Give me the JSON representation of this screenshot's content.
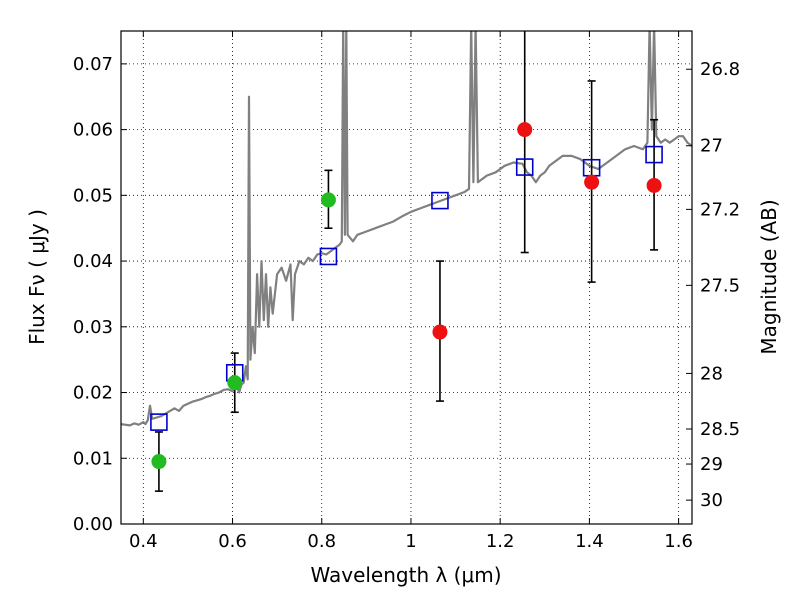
{
  "chart_data": {
    "type": "scatter",
    "xlabel": "Wavelength  λ (μm)",
    "ylabel": "Flux  Fν  ( μJy )",
    "y2label": "Magnitude (AB)",
    "xlim": [
      0.35,
      1.63
    ],
    "ylim": [
      0.0,
      0.075
    ],
    "grid": true,
    "x_ticks": [
      0.4,
      0.6,
      0.8,
      1.0,
      1.2,
      1.4,
      1.6
    ],
    "x_tick_labels": [
      "0.4",
      "0.6",
      "0.8",
      "1",
      "1.2",
      "1.4",
      "1.6"
    ],
    "y_ticks": [
      0.0,
      0.01,
      0.02,
      0.03,
      0.04,
      0.05,
      0.06,
      0.07
    ],
    "y_tick_labels": [
      "0.00",
      "0.01",
      "0.02",
      "0.03",
      "0.04",
      "0.05",
      "0.06",
      "0.07"
    ],
    "mag_ticks": [
      26.8,
      27.0,
      27.2,
      27.5,
      28.0,
      28.5,
      29.0,
      30.0
    ],
    "mag_tick_labels": [
      "26.8",
      "27",
      "27.2",
      "27.5",
      "28",
      "28.5",
      "29",
      "30"
    ],
    "colors": {
      "model": "#808080",
      "green_points": "#22bb22",
      "red_points": "#ee1111",
      "model_squares": "#0000cc",
      "errorbars": "#000000"
    },
    "model_spectrum": [
      [
        0.35,
        0.0152
      ],
      [
        0.37,
        0.015
      ],
      [
        0.38,
        0.0153
      ],
      [
        0.39,
        0.0151
      ],
      [
        0.4,
        0.0155
      ],
      [
        0.405,
        0.0152
      ],
      [
        0.41,
        0.0158
      ],
      [
        0.415,
        0.018
      ],
      [
        0.42,
        0.016
      ],
      [
        0.43,
        0.0162
      ],
      [
        0.44,
        0.0164
      ],
      [
        0.45,
        0.0168
      ],
      [
        0.46,
        0.0172
      ],
      [
        0.47,
        0.0176
      ],
      [
        0.48,
        0.0172
      ],
      [
        0.49,
        0.018
      ],
      [
        0.5,
        0.0183
      ],
      [
        0.51,
        0.0186
      ],
      [
        0.52,
        0.0188
      ],
      [
        0.53,
        0.019
      ],
      [
        0.54,
        0.0193
      ],
      [
        0.55,
        0.0195
      ],
      [
        0.56,
        0.0198
      ],
      [
        0.57,
        0.02
      ],
      [
        0.58,
        0.0204
      ],
      [
        0.59,
        0.0205
      ],
      [
        0.6,
        0.0202
      ],
      [
        0.61,
        0.0208
      ],
      [
        0.615,
        0.02
      ],
      [
        0.62,
        0.0212
      ],
      [
        0.625,
        0.0215
      ],
      [
        0.63,
        0.024
      ],
      [
        0.634,
        0.022
      ],
      [
        0.637,
        0.065
      ],
      [
        0.64,
        0.025
      ],
      [
        0.645,
        0.03
      ],
      [
        0.65,
        0.026
      ],
      [
        0.655,
        0.038
      ],
      [
        0.66,
        0.03
      ],
      [
        0.665,
        0.04
      ],
      [
        0.67,
        0.031
      ],
      [
        0.675,
        0.038
      ],
      [
        0.68,
        0.03
      ],
      [
        0.685,
        0.036
      ],
      [
        0.69,
        0.032
      ],
      [
        0.7,
        0.038
      ],
      [
        0.71,
        0.039
      ],
      [
        0.72,
        0.037
      ],
      [
        0.73,
        0.0395
      ],
      [
        0.735,
        0.031
      ],
      [
        0.74,
        0.038
      ],
      [
        0.75,
        0.04
      ],
      [
        0.76,
        0.0395
      ],
      [
        0.77,
        0.0405
      ],
      [
        0.78,
        0.04
      ],
      [
        0.79,
        0.041
      ],
      [
        0.8,
        0.0412
      ],
      [
        0.81,
        0.041
      ],
      [
        0.82,
        0.0415
      ],
      [
        0.83,
        0.042
      ],
      [
        0.84,
        0.0425
      ],
      [
        0.845,
        0.043
      ],
      [
        0.848,
        0.076
      ],
      [
        0.852,
        0.044
      ],
      [
        0.855,
        0.076
      ],
      [
        0.858,
        0.044
      ],
      [
        0.87,
        0.043
      ],
      [
        0.88,
        0.044
      ],
      [
        0.9,
        0.0445
      ],
      [
        0.92,
        0.045
      ],
      [
        0.94,
        0.0455
      ],
      [
        0.96,
        0.046
      ],
      [
        0.98,
        0.0468
      ],
      [
        1.0,
        0.0475
      ],
      [
        1.02,
        0.048
      ],
      [
        1.04,
        0.0485
      ],
      [
        1.06,
        0.049
      ],
      [
        1.08,
        0.0495
      ],
      [
        1.1,
        0.05
      ],
      [
        1.12,
        0.0505
      ],
      [
        1.13,
        0.051
      ],
      [
        1.135,
        0.076
      ],
      [
        1.14,
        0.052
      ],
      [
        1.145,
        0.076
      ],
      [
        1.15,
        0.052
      ],
      [
        1.17,
        0.053
      ],
      [
        1.19,
        0.0535
      ],
      [
        1.21,
        0.0545
      ],
      [
        1.23,
        0.055
      ],
      [
        1.25,
        0.0548
      ],
      [
        1.26,
        0.0535
      ],
      [
        1.27,
        0.053
      ],
      [
        1.28,
        0.052
      ],
      [
        1.29,
        0.053
      ],
      [
        1.3,
        0.0535
      ],
      [
        1.31,
        0.0545
      ],
      [
        1.32,
        0.055
      ],
      [
        1.34,
        0.056
      ],
      [
        1.36,
        0.056
      ],
      [
        1.38,
        0.0555
      ],
      [
        1.4,
        0.0545
      ],
      [
        1.42,
        0.054
      ],
      [
        1.44,
        0.055
      ],
      [
        1.46,
        0.056
      ],
      [
        1.48,
        0.057
      ],
      [
        1.5,
        0.0575
      ],
      [
        1.52,
        0.057
      ],
      [
        1.53,
        0.058
      ],
      [
        1.535,
        0.076
      ],
      [
        1.54,
        0.06
      ],
      [
        1.545,
        0.076
      ],
      [
        1.55,
        0.059
      ],
      [
        1.56,
        0.058
      ],
      [
        1.57,
        0.0585
      ],
      [
        1.58,
        0.058
      ],
      [
        1.59,
        0.0585
      ],
      [
        1.6,
        0.059
      ],
      [
        1.61,
        0.059
      ],
      [
        1.62,
        0.058
      ],
      [
        1.63,
        0.0575
      ]
    ],
    "model_points": [
      {
        "x": 0.435,
        "y": 0.0155
      },
      {
        "x": 0.605,
        "y": 0.023
      },
      {
        "x": 0.815,
        "y": 0.0407
      },
      {
        "x": 1.065,
        "y": 0.0492
      },
      {
        "x": 1.255,
        "y": 0.0543
      },
      {
        "x": 1.405,
        "y": 0.0542
      },
      {
        "x": 1.545,
        "y": 0.0562
      }
    ],
    "green_points": [
      {
        "x": 0.435,
        "y": 0.0095,
        "yerr_low": 0.005,
        "yerr_high": 0.014
      },
      {
        "x": 0.605,
        "y": 0.0215,
        "yerr_low": 0.017,
        "yerr_high": 0.026
      },
      {
        "x": 0.815,
        "y": 0.0493,
        "yerr_low": 0.045,
        "yerr_high": 0.0538
      }
    ],
    "red_points": [
      {
        "x": 1.065,
        "y": 0.0292,
        "yerr_low": 0.0187,
        "yerr_high": 0.04
      },
      {
        "x": 1.255,
        "y": 0.06,
        "yerr_low": 0.0413,
        "yerr_high": 0.076
      },
      {
        "x": 1.405,
        "y": 0.052,
        "yerr_low": 0.0368,
        "yerr_high": 0.0674
      },
      {
        "x": 1.545,
        "y": 0.0515,
        "yerr_low": 0.0417,
        "yerr_high": 0.0615
      }
    ]
  }
}
